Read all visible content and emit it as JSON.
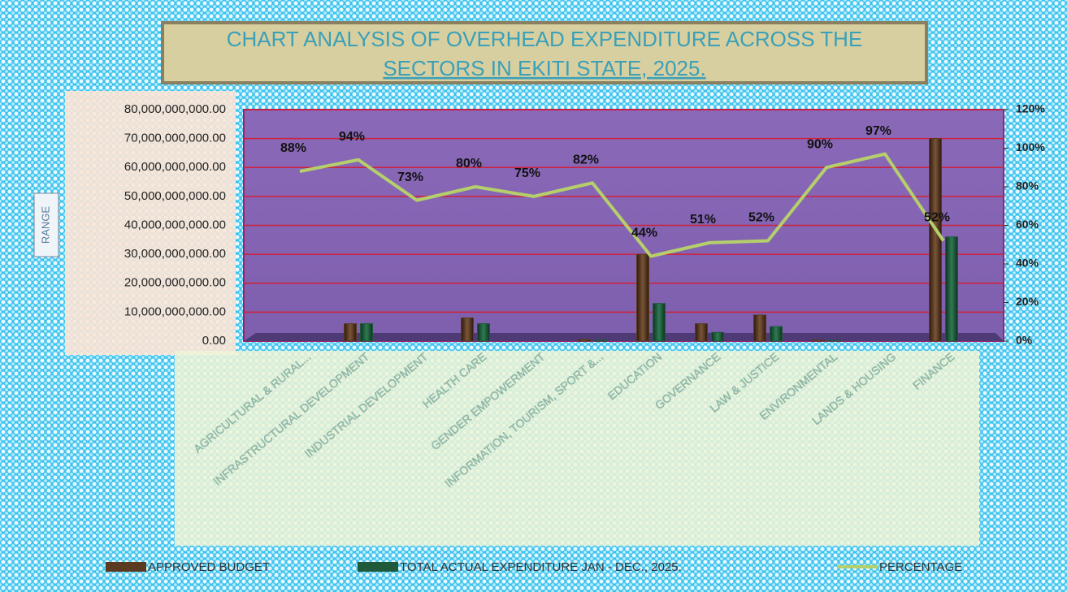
{
  "chart_data": {
    "type": "bar_line",
    "title": [
      "CHART ANALYSIS OF OVERHEAD EXPENDITURE ACROSS THE",
      "SECTORS IN EKITI STATE, 2025."
    ],
    "y_label": "RANGE",
    "categories": [
      "AGRICULTURAL & RURAL...",
      "INFRASTRUCTURAL DEVELOPMENT",
      "INDUSTRIAL DEVELOPMENT",
      "HEALTH CARE",
      "GENDER EMPOWERMENT",
      "INFORMATION, TOURISM, SPORT &...",
      "EDUCATION",
      "GOVERNANCE",
      "LAW & JUSTICE",
      "ENVIRONMENTAL",
      "LANDS & HOUSING",
      "FINANCE"
    ],
    "series": [
      {
        "name": "APPROVED BUDGET",
        "color": "#5a3a20",
        "values": [
          0,
          6000000000,
          0,
          8000000000,
          0,
          500000000,
          30000000000,
          6000000000,
          9000000000,
          300000000,
          0,
          70000000000
        ]
      },
      {
        "name": "TOTAL ACTUAL EXPENDITURE JAN - DEC., 2025.",
        "color": "#1f5a3a",
        "values": [
          0,
          6000000000,
          0,
          6000000000,
          0,
          300000000,
          13000000000,
          3000000000,
          5000000000,
          200000000,
          0,
          36000000000
        ]
      },
      {
        "name": "PERCENTAGE",
        "color": "#b5cf6b",
        "axis": "y2",
        "type": "line",
        "values": [
          88,
          94,
          73,
          80,
          75,
          82,
          44,
          51,
          52,
          90,
          97,
          52
        ],
        "value_labels": [
          "88%",
          "94%",
          "73%",
          "80%",
          "75%",
          "82%",
          "44%",
          "51%",
          "52%",
          "90%",
          "97%",
          "52%"
        ]
      }
    ],
    "ylim": [
      0,
      80000000000
    ],
    "yticks": [
      {
        "value": 0,
        "label": "0.00"
      },
      {
        "value": 10000000000,
        "label": "10,000,000,000.00"
      },
      {
        "value": 20000000000,
        "label": "20,000,000,000.00"
      },
      {
        "value": 30000000000,
        "label": "30,000,000,000.00"
      },
      {
        "value": 40000000000,
        "label": "40,000,000,000.00"
      },
      {
        "value": 50000000000,
        "label": "50,000,000,000.00"
      },
      {
        "value": 60000000000,
        "label": "60,000,000,000.00"
      },
      {
        "value": 70000000000,
        "label": "70,000,000,000.00"
      },
      {
        "value": 80000000000,
        "label": "80,000,000,000.00"
      }
    ],
    "y2lim": [
      0,
      120
    ],
    "y2ticks": [
      {
        "value": 0,
        "label": "0%"
      },
      {
        "value": 20,
        "label": "20%"
      },
      {
        "value": 40,
        "label": "40%"
      },
      {
        "value": 60,
        "label": "60%"
      },
      {
        "value": 80,
        "label": "80%"
      },
      {
        "value": 100,
        "label": "100%"
      },
      {
        "value": 120,
        "label": "120%"
      }
    ],
    "grid": true,
    "legend": "bottom"
  }
}
